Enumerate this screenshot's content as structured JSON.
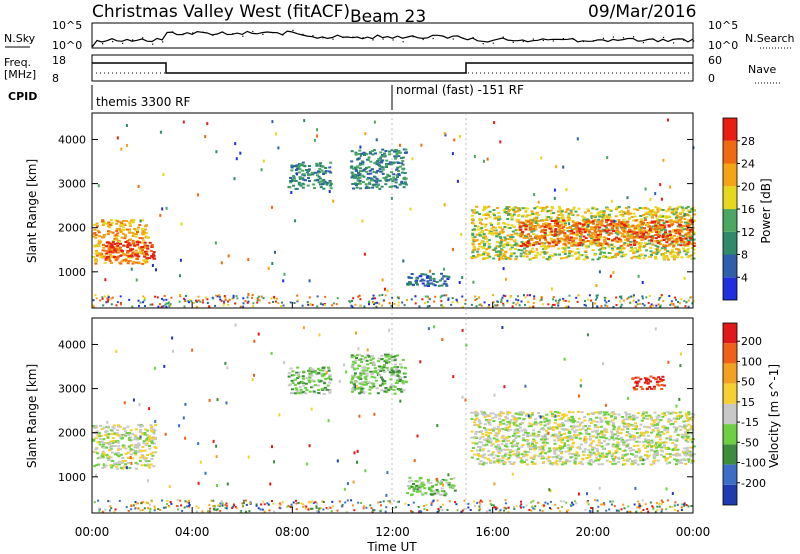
{
  "header": {
    "station": "Christmas Valley West (fitACF)",
    "beam": "Beam 23",
    "date": "09/Mar/2016"
  },
  "strip": {
    "nsky_label": "N.Sky",
    "nsearch_label": "N.Search",
    "nsky_ticks": [
      "10^5",
      "10^0"
    ],
    "nsearch_ticks": [
      "10^5",
      "10^0"
    ],
    "freq_label_1": "Freq.",
    "freq_label_2": "[MHz]",
    "freq_ticks": [
      "18",
      "8"
    ],
    "nave_label": "Nave",
    "nave_ticks": [
      "60",
      "0"
    ],
    "cpid_label": "CPID",
    "cpid_1": "themis 3300 RF",
    "cpid_2": "normal (fast) -151 RF"
  },
  "chart_data": [
    {
      "type": "heatmap",
      "name": "power",
      "ylabel": "Slant Range [km]",
      "yticks": [
        1000,
        2000,
        3000,
        4000
      ],
      "ylim": [
        180,
        4600
      ],
      "xlim": [
        0,
        24
      ],
      "colorbar_label": "Power [dB]",
      "colorbar_ticks": [
        "4",
        "8",
        "12",
        "16",
        "20",
        "24",
        "28"
      ],
      "colorbar_colors": [
        "#1f2fe0",
        "#2e5fa8",
        "#2e8a6a",
        "#4aa860",
        "#e6d81e",
        "#f4a414",
        "#f06a10",
        "#e81e10"
      ],
      "echo_regions": [
        {
          "t0": 0.0,
          "t1": 2.2,
          "r0": 1200,
          "r1": 2200,
          "level": 5
        },
        {
          "t0": 0.5,
          "t1": 2.5,
          "r0": 1300,
          "r1": 1700,
          "level": 7
        },
        {
          "t0": 7.8,
          "t1": 9.5,
          "r0": 2900,
          "r1": 3500,
          "level": 2
        },
        {
          "t0": 10.3,
          "t1": 12.5,
          "r0": 2900,
          "r1": 3800,
          "level": 2
        },
        {
          "t0": 12.5,
          "t1": 14.2,
          "r0": 700,
          "r1": 1000,
          "level": 1
        },
        {
          "t0": 15.1,
          "t1": 24.0,
          "r0": 1300,
          "r1": 2500,
          "level": 4
        },
        {
          "t0": 17.0,
          "t1": 24.0,
          "r0": 1600,
          "r1": 2200,
          "level": 6
        }
      ]
    },
    {
      "type": "heatmap",
      "name": "velocity",
      "ylabel": "Slant Range [km]",
      "yticks": [
        1000,
        2000,
        3000,
        4000
      ],
      "ylim": [
        180,
        4600
      ],
      "xlim": [
        0,
        24
      ],
      "xlabel": "Time UT",
      "xticks": [
        "00:00",
        "04:00",
        "08:00",
        "12:00",
        "16:00",
        "20:00",
        "00:00"
      ],
      "colorbar_label": "Velocity [m s^-1]",
      "colorbar_ticks": [
        "200",
        "100",
        "50",
        "15",
        "-15",
        "-50",
        "-100",
        "-200"
      ],
      "colorbar_colors": [
        "#1e3cb0",
        "#3c6ec8",
        "#3c8c3c",
        "#6cd040",
        "#c8c8c8",
        "#f4d030",
        "#f4a020",
        "#f06018",
        "#e01818"
      ],
      "echo_regions": [
        {
          "t0": 0.0,
          "t1": 2.5,
          "r0": 1200,
          "r1": 2200,
          "level": 4
        },
        {
          "t0": 7.8,
          "t1": 9.5,
          "r0": 2900,
          "r1": 3500,
          "level": 3
        },
        {
          "t0": 10.3,
          "t1": 12.5,
          "r0": 2900,
          "r1": 3800,
          "level": 3
        },
        {
          "t0": 12.5,
          "t1": 14.5,
          "r0": 600,
          "r1": 1000,
          "level": 3
        },
        {
          "t0": 15.1,
          "t1": 24.0,
          "r0": 1300,
          "r1": 2500,
          "level": 4
        },
        {
          "t0": 21.5,
          "t1": 22.8,
          "r0": 3000,
          "r1": 3300,
          "level": 8
        }
      ]
    }
  ]
}
